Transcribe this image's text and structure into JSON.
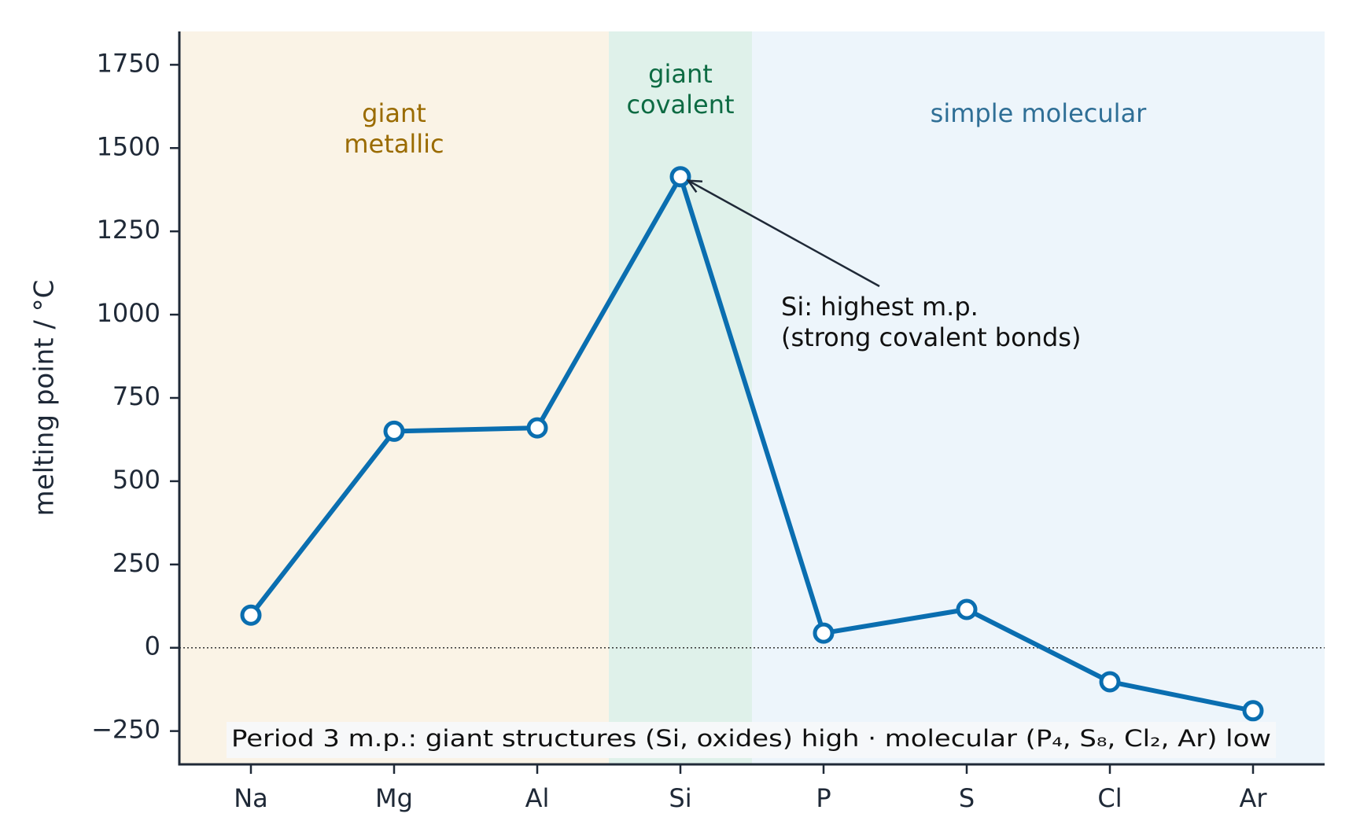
{
  "chart_data": {
    "type": "line",
    "x_categories": [
      "Na",
      "Mg",
      "Al",
      "Si",
      "P",
      "S",
      "Cl",
      "Ar"
    ],
    "series": [
      {
        "values": [
          98,
          650,
          660,
          1414,
          44,
          115,
          -102,
          -189
        ]
      }
    ],
    "ylabel": "melting point / °C",
    "xlabel": "",
    "ylim": [
      -350,
      1850
    ],
    "yticks": [
      -250,
      0,
      250,
      500,
      750,
      1000,
      1250,
      1500,
      1750
    ],
    "ytick_labels": [
      "−250",
      "0",
      "250",
      "500",
      "750",
      "1000",
      "1250",
      "1500",
      "1750"
    ],
    "zero_line": "dotted",
    "grid": false,
    "regions": [
      {
        "label_lines": [
          "giant",
          "metallic"
        ],
        "from_index": 0,
        "to_index": 2,
        "fill": "#faf3e6",
        "text_color": "#9a6b00"
      },
      {
        "label_lines": [
          "giant",
          "covalent"
        ],
        "from_index": 3,
        "to_index": 3,
        "fill": "#dff1ea",
        "text_color": "#0d6b43"
      },
      {
        "label_lines": [
          "simple molecular"
        ],
        "from_index": 4,
        "to_index": 7,
        "fill": "#edf5fb",
        "text_color": "#2f6f96"
      }
    ],
    "annotation": {
      "point_category": "Si",
      "lines": [
        "Si: highest m.p.",
        "(strong covalent bonds)"
      ]
    },
    "footnote": "Period 3 m.p.: giant structures (Si, oxides) high  ·  molecular (P₄, S₈, Cl₂, Ar) low",
    "colors": {
      "line": "#0a6eb0",
      "axis": "#1f2937",
      "text": "#1f2937"
    }
  }
}
